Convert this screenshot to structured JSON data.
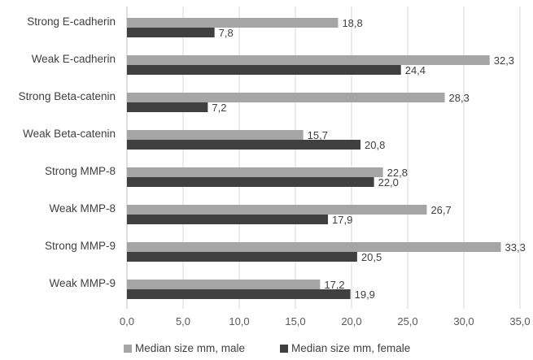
{
  "chart_data": {
    "type": "bar",
    "orientation": "horizontal",
    "categories": [
      "Strong E-cadherin",
      "Weak E-cadherin",
      "Strong Beta-catenin",
      "Weak Beta-catenin",
      "Strong MMP-8",
      "Weak MMP-8",
      "Strong MMP-9",
      "Weak MMP-9"
    ],
    "series": [
      {
        "name": "Median size mm, male",
        "color": "#a5a5a5",
        "values": [
          18.8,
          32.3,
          28.3,
          15.7,
          22.8,
          26.7,
          33.3,
          17.2
        ],
        "labels": [
          "18,8",
          "32,3",
          "28,3",
          "15,7",
          "22,8",
          "26,7",
          "33,3",
          "17,2"
        ]
      },
      {
        "name": "Median size mm, female",
        "color": "#404040",
        "values": [
          7.8,
          24.4,
          7.2,
          20.8,
          22.0,
          17.9,
          20.5,
          19.9
        ],
        "labels": [
          "7,8",
          "24,4",
          "7,2",
          "20,8",
          "22,0",
          "17,9",
          "20,5",
          "19,9"
        ]
      }
    ],
    "xlim": [
      0,
      35
    ],
    "xticks": [
      "0,0",
      "5,0",
      "10,0",
      "15,0",
      "20,0",
      "25,0",
      "30,0",
      "35,0"
    ],
    "grid": true,
    "legend_position": "bottom"
  }
}
